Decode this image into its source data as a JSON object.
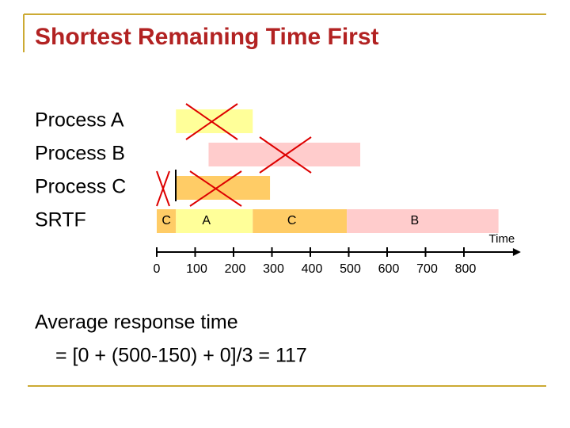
{
  "title": "Shortest Remaining Time First",
  "rows": [
    "Process A",
    "Process B",
    "Process C",
    "SRTF"
  ],
  "processes": [
    {
      "start": 50,
      "end": 250,
      "color": "#ffff99"
    },
    {
      "start": 135,
      "end": 530,
      "color": "#ffcccc"
    },
    {
      "start": 50,
      "end": 295,
      "color": "#ffcc66"
    }
  ],
  "srtf": [
    {
      "label": "C",
      "start": 0,
      "end": 50,
      "color": "#ffcc66"
    },
    {
      "label": "A",
      "start": 50,
      "end": 250,
      "color": "#ffff99"
    },
    {
      "label": "C",
      "start": 250,
      "end": 495,
      "color": "#ffcc66"
    },
    {
      "label": "B",
      "start": 495,
      "end": 890,
      "color": "#ffcccc"
    }
  ],
  "axis": {
    "label": "Time",
    "xlim": [
      0,
      940
    ],
    "xticks": [
      0,
      100,
      200,
      300,
      400,
      500,
      600,
      700,
      800
    ]
  },
  "formula": [
    "Average response time",
    "= [0 + (500-150) + 0]/3 = 117"
  ]
}
